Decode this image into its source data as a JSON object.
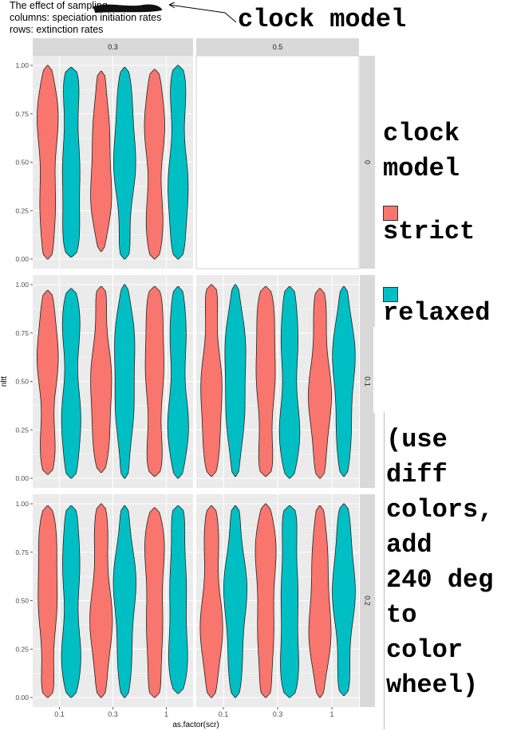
{
  "title_lines": [
    "The effect of sampling",
    "columns: speciation initiation rates",
    "rows: extinction rates"
  ],
  "annotations": {
    "clock_model_label": "clock model",
    "legend_title_line1": "clock",
    "legend_title_line2": "model",
    "note_lines": [
      "(use",
      "diff",
      "colors,",
      "add",
      "240 deg",
      "to",
      "color",
      "wheel)"
    ]
  },
  "colors": {
    "strict": "#F8766D",
    "relaxed": "#00BFC4",
    "panel_bg": "#EBEBEB",
    "strip_bg": "#D9D9D9",
    "grid": "#FFFFFF"
  },
  "chart_data": {
    "type": "violin",
    "title": "The effect of sampling",
    "xlabel": "as.factor(scr)",
    "ylabel": "nltt",
    "x_categories": [
      "0.1",
      "0.3",
      "1"
    ],
    "y_ticks": [
      "0.00",
      "0.25",
      "0.50",
      "0.75",
      "1.00"
    ],
    "ylim": [
      0,
      1
    ],
    "legend": {
      "title": "clock model",
      "entries": [
        {
          "key": "strict",
          "label": "strict",
          "color": "#F8766D"
        },
        {
          "key": "relaxed",
          "label": "relaxed",
          "color": "#00BFC4"
        }
      ]
    },
    "col_strips": [
      "0.3",
      "0.5"
    ],
    "row_strips": [
      "0",
      "0.1",
      "0.2"
    ],
    "panels": [
      {
        "row": "0",
        "col": "0.3",
        "violins": [
          {
            "x": "0.1",
            "clock": "strict",
            "min": 0.0,
            "max": 1.0
          },
          {
            "x": "0.1",
            "clock": "relaxed",
            "min": 0.01,
            "max": 0.99
          },
          {
            "x": "0.3",
            "clock": "strict",
            "min": 0.04,
            "max": 0.97
          },
          {
            "x": "0.3",
            "clock": "relaxed",
            "min": 0.0,
            "max": 0.99
          },
          {
            "x": "1",
            "clock": "strict",
            "min": 0.0,
            "max": 0.98
          },
          {
            "x": "1",
            "clock": "relaxed",
            "min": 0.0,
            "max": 1.0
          }
        ]
      },
      {
        "row": "0",
        "col": "0.5",
        "violins": []
      },
      {
        "row": "0.1",
        "col": "0.3",
        "violins": [
          {
            "x": "0.1",
            "clock": "strict",
            "min": 0.02,
            "max": 0.97
          },
          {
            "x": "0.1",
            "clock": "relaxed",
            "min": 0.0,
            "max": 0.98
          },
          {
            "x": "0.3",
            "clock": "strict",
            "min": 0.03,
            "max": 0.99
          },
          {
            "x": "0.3",
            "clock": "relaxed",
            "min": 0.0,
            "max": 1.0
          },
          {
            "x": "1",
            "clock": "strict",
            "min": 0.01,
            "max": 0.99
          },
          {
            "x": "1",
            "clock": "relaxed",
            "min": 0.0,
            "max": 0.99
          }
        ]
      },
      {
        "row": "0.1",
        "col": "0.5",
        "violins": [
          {
            "x": "0.1",
            "clock": "strict",
            "min": 0.01,
            "max": 1.0
          },
          {
            "x": "0.1",
            "clock": "relaxed",
            "min": 0.01,
            "max": 1.0
          },
          {
            "x": "0.3",
            "clock": "strict",
            "min": 0.01,
            "max": 0.99
          },
          {
            "x": "0.3",
            "clock": "relaxed",
            "min": 0.0,
            "max": 0.99
          },
          {
            "x": "1",
            "clock": "strict",
            "min": 0.0,
            "max": 0.98
          },
          {
            "x": "1",
            "clock": "relaxed",
            "min": 0.01,
            "max": 0.99
          }
        ]
      },
      {
        "row": "0.2",
        "col": "0.3",
        "violins": [
          {
            "x": "0.1",
            "clock": "strict",
            "min": 0.0,
            "max": 0.99
          },
          {
            "x": "0.1",
            "clock": "relaxed",
            "min": 0.0,
            "max": 0.99
          },
          {
            "x": "0.3",
            "clock": "strict",
            "min": 0.0,
            "max": 1.0
          },
          {
            "x": "0.3",
            "clock": "relaxed",
            "min": 0.0,
            "max": 0.99
          },
          {
            "x": "1",
            "clock": "strict",
            "min": 0.0,
            "max": 0.98
          },
          {
            "x": "1",
            "clock": "relaxed",
            "min": 0.02,
            "max": 0.99
          }
        ]
      },
      {
        "row": "0.2",
        "col": "0.5",
        "violins": [
          {
            "x": "0.1",
            "clock": "strict",
            "min": 0.0,
            "max": 0.99
          },
          {
            "x": "0.1",
            "clock": "relaxed",
            "min": 0.0,
            "max": 0.99
          },
          {
            "x": "0.3",
            "clock": "strict",
            "min": 0.0,
            "max": 1.0
          },
          {
            "x": "0.3",
            "clock": "relaxed",
            "min": 0.0,
            "max": 0.99
          },
          {
            "x": "1",
            "clock": "strict",
            "min": 0.0,
            "max": 0.99
          },
          {
            "x": "1",
            "clock": "relaxed",
            "min": 0.01,
            "max": 1.0
          }
        ]
      }
    ]
  }
}
